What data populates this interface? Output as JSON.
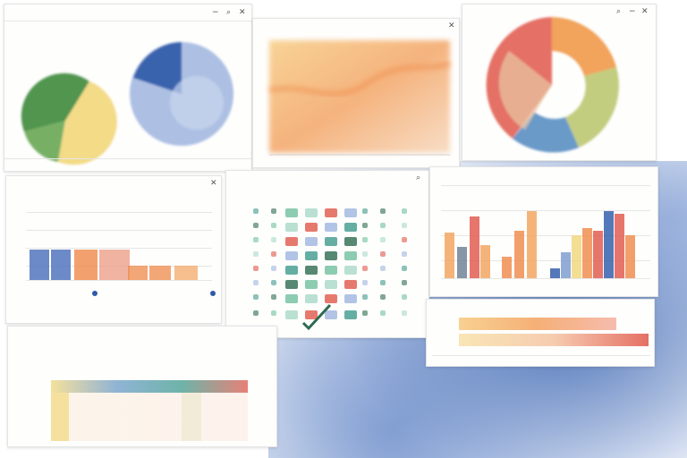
{
  "colors": {
    "wash": "#5c7fbf",
    "green": "#3f8a3a",
    "yellow": "#f2d77c",
    "blue": "#2f5aa8",
    "orange": "#ef8a4a",
    "red": "#e0574a",
    "teal": "#3f9a8c",
    "grey": "#6b7f92"
  },
  "icons": {
    "close": "✕",
    "minimize": "−",
    "pin": "⌕",
    "corner": "⤡",
    "check": "✓"
  },
  "panels": [
    {
      "id": "pie-panel",
      "title": "",
      "icons": [
        "minimize",
        "pin",
        "close"
      ]
    },
    {
      "id": "area-panel",
      "title": "",
      "icons": [
        "close"
      ]
    },
    {
      "id": "donut-panel",
      "title": "",
      "icons": [
        "pin",
        "minimize",
        "close"
      ]
    },
    {
      "id": "bar-panel",
      "title": "",
      "icons": [
        "close"
      ]
    },
    {
      "id": "grid-panel",
      "title": "",
      "icons": [
        "pin"
      ]
    },
    {
      "id": "column-panel",
      "title": "",
      "icons": []
    },
    {
      "id": "progress-panel",
      "title": "",
      "icons": []
    },
    {
      "id": "table-panel",
      "title": "",
      "icons": []
    }
  ],
  "chart_data": [
    {
      "type": "pie",
      "slices": [
        0.55,
        0.45
      ],
      "colors": [
        "#3f8a3a",
        "#f2d77c"
      ]
    },
    {
      "type": "pie",
      "slices": [
        0.3,
        0.7
      ],
      "colors": [
        "#2f5aa8",
        "#9fb5de"
      ]
    },
    {
      "type": "area",
      "colors": [
        "#f5b777",
        "#ef8a4a"
      ]
    },
    {
      "type": "pie",
      "slices": [
        0.32,
        0.2,
        0.28,
        0.2
      ],
      "colors": [
        "#e0574a",
        "#f2a35c",
        "#6b9ac8",
        "#eac9a6"
      ]
    },
    {
      "type": "bar",
      "values": [
        30,
        30,
        30,
        30,
        12,
        12,
        12
      ],
      "colors": [
        "#2f5aa8",
        "#2f5aa8",
        "#ef8a4a",
        "#e0574a",
        "#ef8a4a",
        "#ef8a4a",
        "#f2a35c"
      ]
    },
    {
      "type": "bar",
      "values": [
        38,
        26,
        52,
        28,
        18,
        40,
        56,
        8,
        22,
        36,
        42,
        40,
        56,
        54,
        36
      ],
      "colors": [
        "#f2a35c",
        "#6b7f92",
        "#e0574a",
        "#f2a35c",
        "#ef8a4a",
        "#ef8a4a",
        "#f2a35c",
        "#2f5aa8",
        "#7d9bd0",
        "#f2d77c",
        "#ef8a4a",
        "#e0574a",
        "#2f5aa8",
        "#e0574a",
        "#ef8a4a"
      ]
    },
    {
      "type": "bar",
      "orientation": "horizontal",
      "values": [
        0.78,
        0.9
      ],
      "colors": [
        "#f2a35c",
        "#e0574a"
      ]
    }
  ]
}
